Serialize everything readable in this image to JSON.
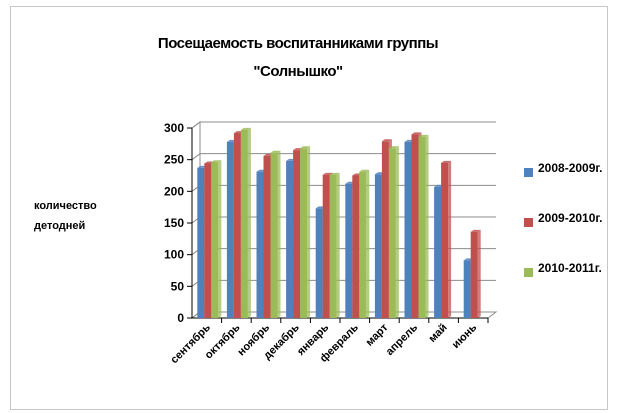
{
  "chart_data": {
    "type": "bar",
    "title_line1": "Посещаемость воспитанниками группы",
    "title_line2": "\"Солнышко\"",
    "ylabel": "количество детодней",
    "xlabel": "",
    "ylim": [
      0,
      300
    ],
    "yticks": [
      "0",
      "50",
      "100",
      "150",
      "200",
      "250",
      "300"
    ],
    "categories": [
      "сентябрь",
      "октябрь",
      "ноябрь",
      "декабрь",
      "январь",
      "февраль",
      "март",
      "апрель",
      "май",
      "июнь"
    ],
    "series": [
      {
        "name": "2008-2009г.",
        "color": "#4f81bd",
        "values": [
          237,
          278,
          231,
          248,
          173,
          212,
          227,
          278,
          207,
          91
        ]
      },
      {
        "name": "2009-2010г.",
        "color": "#c0504d",
        "values": [
          244,
          292,
          256,
          265,
          226,
          225,
          279,
          290,
          245,
          136
        ]
      },
      {
        "name": "2010-2011г.",
        "color": "#9bbb59",
        "values": [
          246,
          297,
          261,
          268,
          226,
          231,
          268,
          286,
          0,
          0
        ]
      }
    ],
    "legend_position": "right",
    "grid": true
  }
}
